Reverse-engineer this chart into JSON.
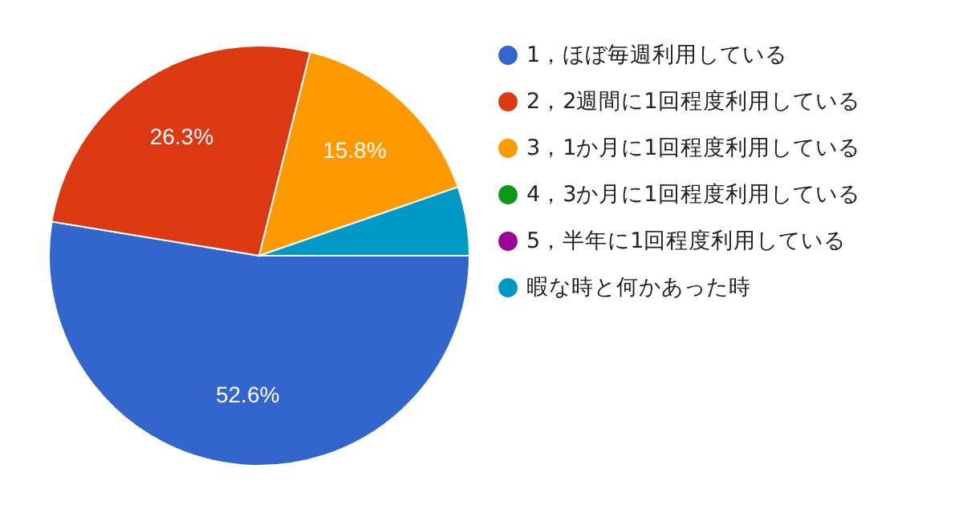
{
  "chart_data": {
    "type": "pie",
    "categories": [
      "1，ほぼ毎週利用している",
      "2，2週間に1回程度利用している",
      "3，1か月に1回程度利用している",
      "4，3か月に1回程度利用している",
      "5，半年に1回程度利用している",
      "暇な時と何かあった時"
    ],
    "values": [
      52.6,
      26.3,
      15.8,
      0,
      0,
      5.3
    ],
    "colors": [
      "#3366cc",
      "#dc3912",
      "#ff9900",
      "#109618",
      "#990099",
      "#0099c6"
    ],
    "value_labels": [
      "52.6%",
      "26.3%",
      "15.8%",
      null,
      null,
      null
    ],
    "legend": "right"
  }
}
